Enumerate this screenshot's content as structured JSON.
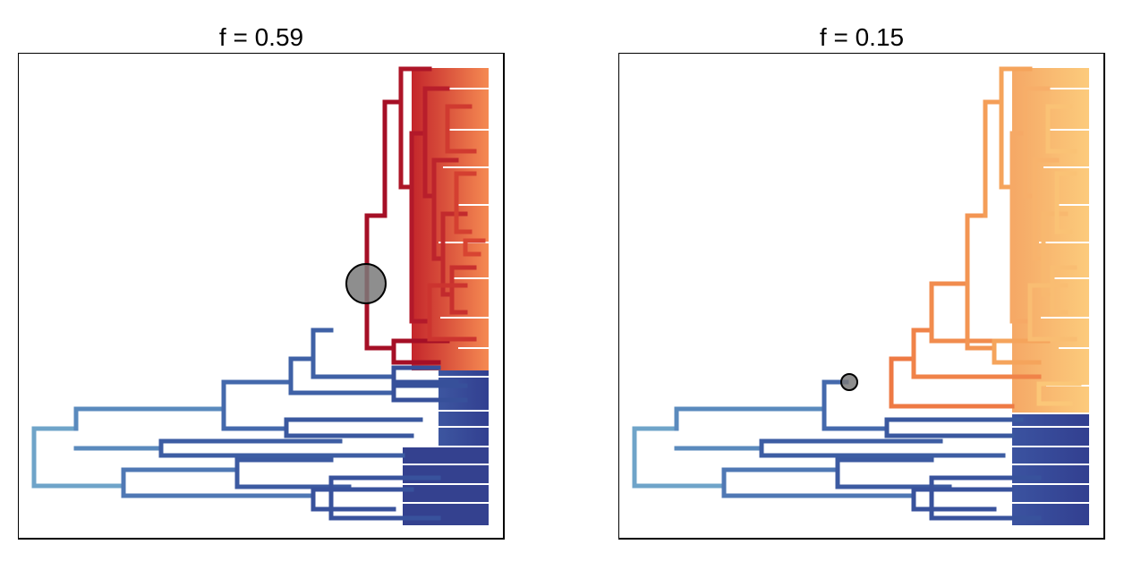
{
  "panels": [
    {
      "title": "f = 0.59",
      "node_size": 0.59
    },
    {
      "title": "f = 0.15",
      "node_size": 0.15
    }
  ],
  "colors": {
    "blue_root": "#6fa4c9",
    "blue_mid": "#3f61a6",
    "blue_deep": "#333f93",
    "red_deep": "#a50f26",
    "red_mid": "#d8402e",
    "red_tip": "#f4894f",
    "orange_mid": "#ee7a44",
    "orange_light": "#f6a867",
    "orange_tip": "#fccb7c",
    "transition_pale": "#e8f3f0",
    "marker_fill": "#7a7a7a"
  }
}
